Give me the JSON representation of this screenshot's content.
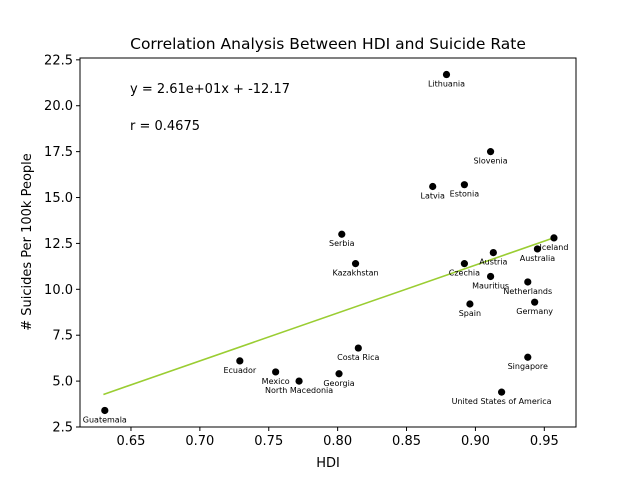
{
  "chart_data": {
    "type": "scatter",
    "title": "Correlation Analysis Between HDI and Suicide Rate",
    "xlabel": "HDI",
    "ylabel": "# Suicides Per 100k People",
    "xlim": [
      0.613,
      0.973
    ],
    "ylim": [
      2.5,
      22.6
    ],
    "xticks": [
      "0.65",
      "0.70",
      "0.75",
      "0.80",
      "0.85",
      "0.90",
      "0.95"
    ],
    "yticks": [
      "2.5",
      "5.0",
      "7.5",
      "10.0",
      "12.5",
      "15.0",
      "17.5",
      "20.0",
      "22.5"
    ],
    "grid": false,
    "point_color": "#000000",
    "fit_color": "#9acd32",
    "equation": "y = 2.61e+01x + -12.17",
    "r_text": "r = 0.4675",
    "fit": {
      "slope": 26.1,
      "intercept": -12.17,
      "x_range": [
        0.63,
        0.957
      ]
    },
    "points": [
      {
        "name": "Lithuania",
        "x": 0.879,
        "y": 21.7
      },
      {
        "name": "Slovenia",
        "x": 0.911,
        "y": 17.5
      },
      {
        "name": "Latvia",
        "x": 0.869,
        "y": 15.6
      },
      {
        "name": "Estonia",
        "x": 0.892,
        "y": 15.7
      },
      {
        "name": "Serbia",
        "x": 0.803,
        "y": 13.0
      },
      {
        "name": "Iceland",
        "x": 0.957,
        "y": 12.8
      },
      {
        "name": "Australia",
        "x": 0.945,
        "y": 12.2
      },
      {
        "name": "Kazakhstan",
        "x": 0.813,
        "y": 11.4
      },
      {
        "name": "Austria",
        "x": 0.913,
        "y": 12.0
      },
      {
        "name": "Czechia",
        "x": 0.892,
        "y": 11.4
      },
      {
        "name": "Mauritius",
        "x": 0.911,
        "y": 10.7
      },
      {
        "name": "Netherlands",
        "x": 0.938,
        "y": 10.4
      },
      {
        "name": "Spain",
        "x": 0.896,
        "y": 9.2
      },
      {
        "name": "Germany",
        "x": 0.943,
        "y": 9.3
      },
      {
        "name": "Costa Rica",
        "x": 0.815,
        "y": 6.8
      },
      {
        "name": "Singapore",
        "x": 0.938,
        "y": 6.3
      },
      {
        "name": "Ecuador",
        "x": 0.729,
        "y": 6.1
      },
      {
        "name": "Mexico",
        "x": 0.755,
        "y": 5.5
      },
      {
        "name": "Georgia",
        "x": 0.801,
        "y": 5.4
      },
      {
        "name": "North Macedonia",
        "x": 0.772,
        "y": 5.0
      },
      {
        "name": "United States of America",
        "x": 0.919,
        "y": 4.4
      },
      {
        "name": "Guatemala",
        "x": 0.631,
        "y": 3.4
      }
    ]
  }
}
